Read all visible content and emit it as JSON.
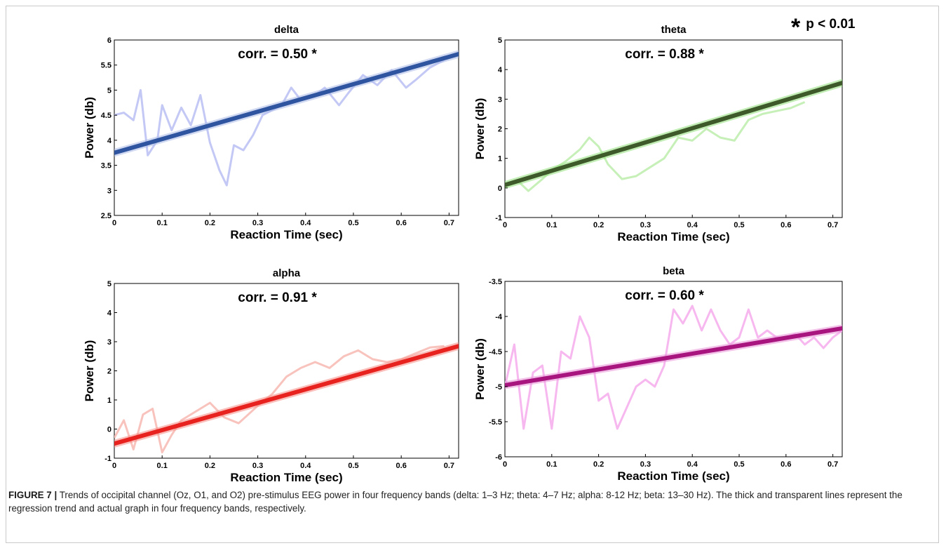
{
  "significance_note": {
    "star": "*",
    "text": "p < 0.01"
  },
  "caption": {
    "label": "FIGURE 7 |",
    "text": "Trends of occipital channel (Oz, O1, and O2) pre-stimulus EEG power in four frequency bands (delta: 1–3 Hz; theta: 4–7 Hz; alpha: 8-12 Hz; beta: 13–30 Hz). The thick and transparent lines represent the regression trend and actual graph in four frequency bands, respectively."
  },
  "chart_data": [
    {
      "type": "line",
      "title": "delta",
      "annotation": "corr. = 0.50 *",
      "xlabel": "Reaction Time (sec)",
      "ylabel": "Power (db)",
      "xlim": [
        0,
        0.72
      ],
      "ylim": [
        2.5,
        6
      ],
      "xticks": [
        "0",
        "0.1",
        "0.2",
        "0.3",
        "0.4",
        "0.5",
        "0.6",
        "0.7"
      ],
      "yticks": [
        "2.5",
        "3",
        "3.5",
        "4",
        "4.5",
        "5",
        "5.5",
        "6"
      ],
      "colors": {
        "trend": "#2f55a0",
        "raw": "#c3c8f5",
        "halo": "#aab9e6"
      },
      "series": [
        {
          "role": "raw",
          "x": [
            0,
            0.02,
            0.04,
            0.055,
            0.07,
            0.09,
            0.1,
            0.12,
            0.14,
            0.16,
            0.18,
            0.2,
            0.22,
            0.235,
            0.25,
            0.27,
            0.29,
            0.31,
            0.33,
            0.35,
            0.37,
            0.39,
            0.42,
            0.44,
            0.47,
            0.49,
            0.52,
            0.55,
            0.58,
            0.61,
            0.63,
            0.66,
            0.69
          ],
          "y": [
            4.5,
            4.55,
            4.4,
            5.0,
            3.7,
            4.0,
            4.7,
            4.2,
            4.65,
            4.3,
            4.9,
            3.95,
            3.4,
            3.1,
            3.9,
            3.8,
            4.1,
            4.5,
            4.6,
            4.7,
            5.05,
            4.8,
            4.9,
            5.05,
            4.7,
            4.95,
            5.3,
            5.1,
            5.4,
            5.05,
            5.2,
            5.45,
            5.6
          ]
        },
        {
          "role": "trend",
          "x": [
            0,
            0.72
          ],
          "y": [
            3.75,
            5.72
          ]
        }
      ]
    },
    {
      "type": "line",
      "title": "theta",
      "annotation": "corr. = 0.88 *",
      "xlabel": "Reaction Time (sec)",
      "ylabel": "Power (db)",
      "xlim": [
        0,
        0.72
      ],
      "ylim": [
        -1,
        5
      ],
      "xticks": [
        "0",
        "0.1",
        "0.2",
        "0.3",
        "0.4",
        "0.5",
        "0.6",
        "0.7"
      ],
      "yticks": [
        "-1",
        "0",
        "1",
        "2",
        "3",
        "4",
        "5"
      ],
      "colors": {
        "trend": "#3f5a2a",
        "raw": "#c6f0b8",
        "halo": "#8fe07a"
      },
      "series": [
        {
          "role": "raw",
          "x": [
            0,
            0.03,
            0.05,
            0.08,
            0.1,
            0.13,
            0.16,
            0.18,
            0.2,
            0.22,
            0.25,
            0.28,
            0.31,
            0.34,
            0.37,
            0.4,
            0.43,
            0.46,
            0.49,
            0.52,
            0.55,
            0.58,
            0.61,
            0.64
          ],
          "y": [
            0.05,
            0.2,
            -0.1,
            0.3,
            0.6,
            0.9,
            1.3,
            1.7,
            1.4,
            0.8,
            0.3,
            0.4,
            0.7,
            1.0,
            1.7,
            1.6,
            2.0,
            1.7,
            1.6,
            2.3,
            2.5,
            2.6,
            2.7,
            2.9
          ]
        },
        {
          "role": "trend",
          "x": [
            0,
            0.72
          ],
          "y": [
            0.1,
            3.55
          ]
        }
      ]
    },
    {
      "type": "line",
      "title": "alpha",
      "annotation": "corr. = 0.91 *",
      "xlabel": "Reaction Time (sec)",
      "ylabel": "Power (db)",
      "xlim": [
        0,
        0.72
      ],
      "ylim": [
        -1,
        5
      ],
      "xticks": [
        "0",
        "0.1",
        "0.2",
        "0.3",
        "0.4",
        "0.5",
        "0.6",
        "0.7"
      ],
      "yticks": [
        "-1",
        "0",
        "1",
        "2",
        "3",
        "4",
        "5"
      ],
      "colors": {
        "trend": "#e8231f",
        "raw": "#f9c3bd",
        "halo": "#f58a83"
      },
      "series": [
        {
          "role": "raw",
          "x": [
            0,
            0.02,
            0.04,
            0.06,
            0.08,
            0.1,
            0.12,
            0.14,
            0.17,
            0.2,
            0.23,
            0.26,
            0.28,
            0.3,
            0.33,
            0.36,
            0.39,
            0.42,
            0.45,
            0.48,
            0.51,
            0.54,
            0.57,
            0.6,
            0.63,
            0.66,
            0.69
          ],
          "y": [
            -0.3,
            0.3,
            -0.7,
            0.5,
            0.7,
            -0.8,
            -0.2,
            0.3,
            0.6,
            0.9,
            0.4,
            0.2,
            0.5,
            0.8,
            1.2,
            1.8,
            2.1,
            2.3,
            2.1,
            2.5,
            2.7,
            2.4,
            2.3,
            2.4,
            2.6,
            2.8,
            2.85
          ]
        },
        {
          "role": "trend",
          "x": [
            0,
            0.72
          ],
          "y": [
            -0.5,
            2.85
          ]
        }
      ]
    },
    {
      "type": "line",
      "title": "beta",
      "annotation": "corr. = 0.60 *",
      "xlabel": "Reaction Time (sec)",
      "ylabel": "Power (db)",
      "xlim": [
        0,
        0.72
      ],
      "ylim": [
        -6,
        -3.5
      ],
      "xticks": [
        "0",
        "0.1",
        "0.2",
        "0.3",
        "0.4",
        "0.5",
        "0.6",
        "0.7"
      ],
      "yticks": [
        "-6",
        "-5.5",
        "-5",
        "-4.5",
        "-4",
        "-3.5"
      ],
      "colors": {
        "trend": "#a8157f",
        "raw": "#f7b8ef",
        "halo": "#e88fd7"
      },
      "series": [
        {
          "role": "raw",
          "x": [
            0,
            0.02,
            0.04,
            0.06,
            0.08,
            0.1,
            0.12,
            0.14,
            0.16,
            0.18,
            0.2,
            0.22,
            0.24,
            0.26,
            0.28,
            0.3,
            0.32,
            0.34,
            0.36,
            0.38,
            0.4,
            0.42,
            0.44,
            0.46,
            0.48,
            0.5,
            0.52,
            0.54,
            0.56,
            0.58,
            0.6,
            0.62,
            0.64,
            0.66,
            0.68,
            0.7,
            0.72
          ],
          "y": [
            -5.0,
            -4.4,
            -5.6,
            -4.8,
            -4.7,
            -5.6,
            -4.5,
            -4.6,
            -4.0,
            -4.3,
            -5.2,
            -5.1,
            -5.6,
            -5.3,
            -5.0,
            -4.9,
            -5.0,
            -4.7,
            -3.9,
            -4.1,
            -3.85,
            -4.2,
            -3.9,
            -4.2,
            -4.4,
            -4.3,
            -3.9,
            -4.3,
            -4.2,
            -4.3,
            -4.3,
            -4.25,
            -4.4,
            -4.3,
            -4.45,
            -4.3,
            -4.2
          ]
        },
        {
          "role": "trend",
          "x": [
            0,
            0.72
          ],
          "y": [
            -4.98,
            -4.17
          ]
        }
      ]
    }
  ]
}
